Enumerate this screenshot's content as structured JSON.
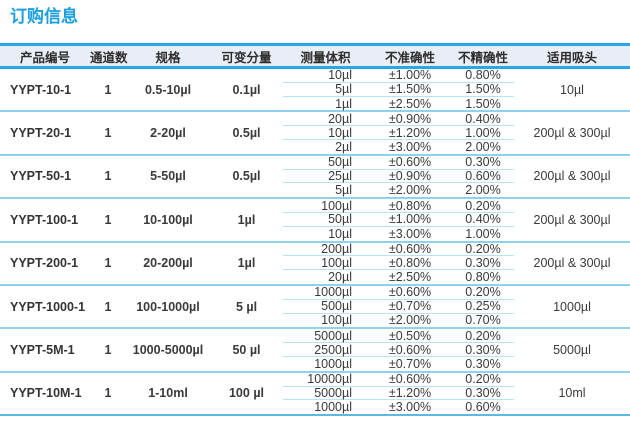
{
  "title": "订购信息",
  "colors": {
    "title_blue": "#1b9fde",
    "accent_blue": "#29a7e0",
    "header_bg": "#e9edf5",
    "group_divider": "#8fd2f0",
    "row_divider": "#b8e2f6"
  },
  "table": {
    "headers": [
      "产品编号",
      "通道数",
      "规格",
      "可变分量",
      "测量体积",
      "不准确性",
      "不精确性",
      "适用吸头"
    ],
    "groups": [
      {
        "code": "YYPT-10-1",
        "channels": "1",
        "range": "0.5-10µl",
        "increment": "0.1µl",
        "tip": "10µl",
        "rows": [
          [
            "10µl",
            "±1.00%",
            "0.80%"
          ],
          [
            "5µl",
            "±1.50%",
            "1.50%"
          ],
          [
            "1µl",
            "±2.50%",
            "1.50%"
          ]
        ]
      },
      {
        "code": "YYPT-20-1",
        "channels": "1",
        "range": "2-20µl",
        "increment": "0.5µl",
        "tip": "200µl & 300µl",
        "rows": [
          [
            "20µl",
            "±0.90%",
            "0.40%"
          ],
          [
            "10µl",
            "±1.20%",
            "1.00%"
          ],
          [
            "2µl",
            "±3.00%",
            "2.00%"
          ]
        ]
      },
      {
        "code": "YYPT-50-1",
        "channels": "1",
        "range": "5-50µl",
        "increment": "0.5µl",
        "tip": "200µl & 300µl",
        "rows": [
          [
            "50µl",
            "±0.60%",
            "0.30%"
          ],
          [
            "25µl",
            "±0.90%",
            "0.60%"
          ],
          [
            "5µl",
            "±2.00%",
            "2.00%"
          ]
        ]
      },
      {
        "code": "YYPT-100-1",
        "channels": "1",
        "range": "10-100µl",
        "increment": "1µl",
        "tip": "200µl & 300µl",
        "rows": [
          [
            "100µl",
            "±0.80%",
            "0.20%"
          ],
          [
            "50µl",
            "±1.00%",
            "0.40%"
          ],
          [
            "10µl",
            "±3.00%",
            "1.00%"
          ]
        ]
      },
      {
        "code": "YYPT-200-1",
        "channels": "1",
        "range": "20-200µl",
        "increment": "1µl",
        "tip": "200µl & 300µl",
        "rows": [
          [
            "200µl",
            "±0.60%",
            "0.20%"
          ],
          [
            "100µl",
            "±0.80%",
            "0.30%"
          ],
          [
            "20µl",
            "±2.50%",
            "0.80%"
          ]
        ]
      },
      {
        "code": "YYPT-1000-1",
        "channels": "1",
        "range": "100-1000µl",
        "increment": "5 µl",
        "tip": "1000µl",
        "rows": [
          [
            "1000µl",
            "±0.60%",
            "0.20%"
          ],
          [
            "500µl",
            "±0.70%",
            "0.25%"
          ],
          [
            "100µl",
            "±2.00%",
            "0.70%"
          ]
        ]
      },
      {
        "code": "YYPT-5M-1",
        "channels": "1",
        "range": "1000-5000µl",
        "increment": "50 µl",
        "tip": "5000µl",
        "rows": [
          [
            "5000µl",
            "±0.50%",
            "0.20%"
          ],
          [
            "2500µl",
            "±0.60%",
            "0.30%"
          ],
          [
            "1000µl",
            "±0.70%",
            "0.30%"
          ]
        ]
      },
      {
        "code": "YYPT-10M-1",
        "channels": "1",
        "range": "1-10ml",
        "increment": "100 µl",
        "tip": "10ml",
        "rows": [
          [
            "10000µl",
            "±0.60%",
            "0.20%"
          ],
          [
            "5000µl",
            "±1.20%",
            "0.30%"
          ],
          [
            "1000µl",
            "±3.00%",
            "0.60%"
          ]
        ]
      }
    ]
  }
}
